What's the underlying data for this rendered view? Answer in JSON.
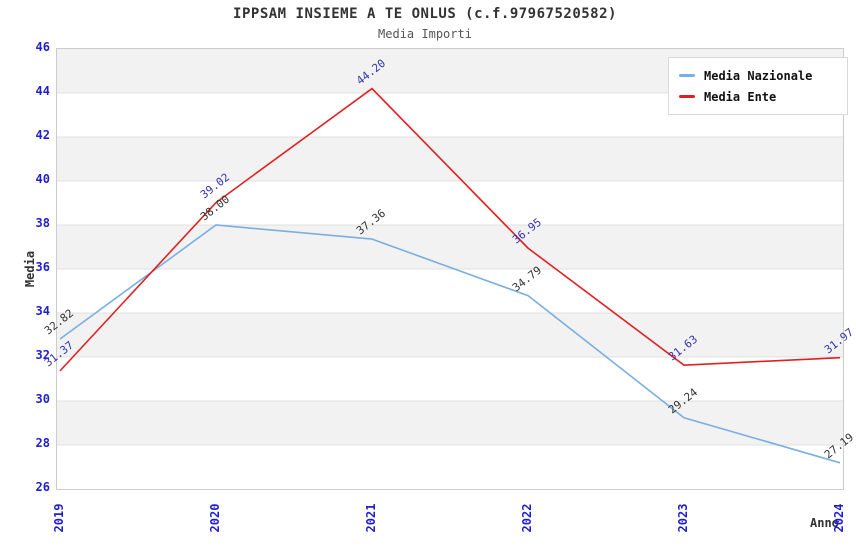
{
  "header": {
    "title": "IPPSAM INSIEME A TE ONLUS (c.f.97967520582)",
    "subtitle": "Media Importi"
  },
  "chart_data": {
    "type": "line",
    "title": "IPPSAM INSIEME A TE ONLUS (c.f.97967520582)",
    "subtitle": "Media Importi",
    "xlabel": "Anno",
    "ylabel": "Media",
    "categories": [
      "2019",
      "2020",
      "2021",
      "2022",
      "2023",
      "2024"
    ],
    "series": [
      {
        "name": "Media Nazionale",
        "color": "#7aafe0",
        "label_color": "#333333",
        "values": [
          32.82,
          38.0,
          37.36,
          34.79,
          29.24,
          27.19
        ]
      },
      {
        "name": "Media Ente",
        "color": "#e02020",
        "label_color": "#3333aa",
        "values": [
          31.37,
          39.02,
          44.2,
          36.95,
          31.63,
          31.97
        ]
      }
    ],
    "ylim": [
      26,
      46
    ],
    "yticks": [
      26,
      28,
      30,
      32,
      34,
      36,
      38,
      40,
      42,
      44,
      46
    ],
    "tick_label_color": "#1f1fd0",
    "band_colors": [
      "#f2f2f2",
      "#ffffff"
    ],
    "gridline_color": "#e0e0e0",
    "plot_border_color": "#cccccc",
    "legend_position": "top-right",
    "grid": "horizontal-bands"
  }
}
